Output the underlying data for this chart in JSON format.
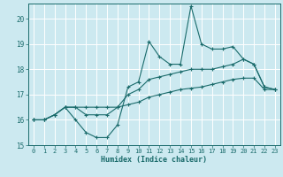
{
  "title": "",
  "xlabel": "Humidex (Indice chaleur)",
  "ylabel": "",
  "bg_color": "#cce9f0",
  "grid_color": "#ffffff",
  "line_color": "#1a6b6b",
  "xlim": [
    -0.5,
    23.5
  ],
  "ylim": [
    15,
    20.6
  ],
  "yticks": [
    15,
    16,
    17,
    18,
    19,
    20
  ],
  "xticks": [
    0,
    1,
    2,
    3,
    4,
    5,
    6,
    7,
    8,
    9,
    10,
    11,
    12,
    13,
    14,
    15,
    16,
    17,
    18,
    19,
    20,
    21,
    22,
    23
  ],
  "line1": [
    16.0,
    16.0,
    16.2,
    16.5,
    16.0,
    15.5,
    15.3,
    15.3,
    15.8,
    17.3,
    17.5,
    19.1,
    18.5,
    18.2,
    18.2,
    20.5,
    19.0,
    18.8,
    18.8,
    18.9,
    18.4,
    18.2,
    17.3,
    17.2
  ],
  "line2": [
    16.0,
    16.0,
    16.2,
    16.5,
    16.5,
    16.5,
    16.5,
    16.5,
    16.5,
    16.6,
    16.7,
    16.9,
    17.0,
    17.1,
    17.2,
    17.25,
    17.3,
    17.4,
    17.5,
    17.6,
    17.65,
    17.65,
    17.2,
    17.2
  ],
  "line3": [
    16.0,
    16.0,
    16.2,
    16.5,
    16.5,
    16.2,
    16.2,
    16.2,
    16.5,
    17.0,
    17.2,
    17.6,
    17.7,
    17.8,
    17.9,
    18.0,
    18.0,
    18.0,
    18.1,
    18.2,
    18.4,
    18.2,
    17.3,
    17.2
  ]
}
